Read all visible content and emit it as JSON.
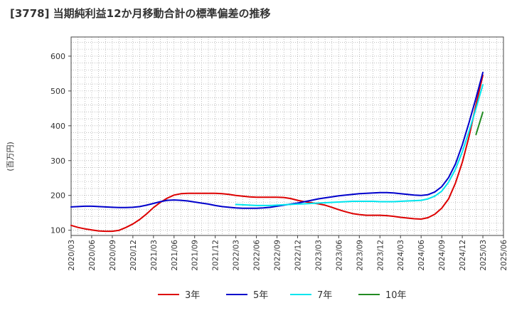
{
  "chart_data": {
    "type": "line",
    "title": "[3778]  当期純利益12か月移動合計の標準偏差の推移",
    "xlabel": "",
    "ylabel": "(百万円)",
    "ylim": [
      85,
      655
    ],
    "yticks": [
      "100",
      "200",
      "300",
      "400",
      "500",
      "600"
    ],
    "ytick_values": [
      100,
      200,
      300,
      400,
      500,
      600
    ],
    "x_range": [
      "2020/03",
      "2025/06"
    ],
    "xticks": [
      "2020/03",
      "2020/06",
      "2020/09",
      "2020/12",
      "2021/03",
      "2021/06",
      "2021/09",
      "2021/12",
      "2022/03",
      "2022/06",
      "2022/09",
      "2022/12",
      "2023/03",
      "2023/06",
      "2023/09",
      "2023/12",
      "2024/03",
      "2024/06",
      "2024/09",
      "2024/12",
      "2025/03",
      "2025/06"
    ],
    "grid": true,
    "legend_position": "bottom",
    "series": [
      {
        "name": "3年",
        "color": "#dd0000",
        "x": [
          "2020/03",
          "2020/04",
          "2020/05",
          "2020/06",
          "2020/07",
          "2020/08",
          "2020/09",
          "2020/10",
          "2020/11",
          "2020/12",
          "2021/01",
          "2021/02",
          "2021/03",
          "2021/04",
          "2021/05",
          "2021/06",
          "2021/07",
          "2021/08",
          "2021/09",
          "2021/10",
          "2021/11",
          "2021/12",
          "2022/01",
          "2022/02",
          "2022/03",
          "2022/04",
          "2022/05",
          "2022/06",
          "2022/07",
          "2022/08",
          "2022/09",
          "2022/10",
          "2022/11",
          "2022/12",
          "2023/01",
          "2023/02",
          "2023/03",
          "2023/04",
          "2023/05",
          "2023/06",
          "2023/07",
          "2023/08",
          "2023/09",
          "2023/10",
          "2023/11",
          "2023/12",
          "2024/01",
          "2024/02",
          "2024/03",
          "2024/04",
          "2024/05",
          "2024/06",
          "2024/07",
          "2024/08",
          "2024/09",
          "2024/10",
          "2024/11",
          "2024/12",
          "2025/01",
          "2025/02",
          "2025/03"
        ],
        "values": [
          114,
          108,
          104,
          101,
          98,
          97,
          97,
          100,
          108,
          118,
          131,
          147,
          165,
          180,
          192,
          201,
          205,
          206,
          206,
          206,
          206,
          206,
          205,
          203,
          200,
          198,
          196,
          195,
          195,
          195,
          195,
          194,
          191,
          186,
          182,
          179,
          176,
          172,
          166,
          159,
          153,
          148,
          145,
          143,
          143,
          143,
          142,
          140,
          137,
          135,
          133,
          132,
          136,
          146,
          163,
          190,
          235,
          295,
          370,
          460,
          545
        ]
      },
      {
        "name": "5年",
        "color": "#0000cc",
        "x": [
          "2020/03",
          "2020/04",
          "2020/05",
          "2020/06",
          "2020/07",
          "2020/08",
          "2020/09",
          "2020/10",
          "2020/11",
          "2020/12",
          "2021/01",
          "2021/02",
          "2021/03",
          "2021/04",
          "2021/05",
          "2021/06",
          "2021/07",
          "2021/08",
          "2021/09",
          "2021/10",
          "2021/11",
          "2021/12",
          "2022/01",
          "2022/02",
          "2022/03",
          "2022/04",
          "2022/05",
          "2022/06",
          "2022/07",
          "2022/08",
          "2022/09",
          "2022/10",
          "2022/11",
          "2022/12",
          "2023/01",
          "2023/02",
          "2023/03",
          "2023/04",
          "2023/05",
          "2023/06",
          "2023/07",
          "2023/08",
          "2023/09",
          "2023/10",
          "2023/11",
          "2023/12",
          "2024/01",
          "2024/02",
          "2024/03",
          "2024/04",
          "2024/05",
          "2024/06",
          "2024/07",
          "2024/08",
          "2024/09",
          "2024/10",
          "2024/11",
          "2024/12",
          "2025/01",
          "2025/02",
          "2025/03"
        ],
        "values": [
          167,
          168,
          169,
          169,
          168,
          167,
          166,
          165,
          165,
          166,
          168,
          172,
          177,
          182,
          186,
          187,
          186,
          184,
          181,
          178,
          175,
          171,
          168,
          166,
          164,
          163,
          163,
          163,
          164,
          166,
          169,
          172,
          175,
          178,
          182,
          186,
          190,
          193,
          196,
          199,
          201,
          203,
          205,
          206,
          207,
          208,
          208,
          207,
          205,
          203,
          201,
          200,
          202,
          210,
          225,
          251,
          290,
          345,
          410,
          480,
          553
        ]
      },
      {
        "name": "7年",
        "color": "#00e5ee",
        "x": [
          "2022/03",
          "2022/04",
          "2022/05",
          "2022/06",
          "2022/07",
          "2022/08",
          "2022/09",
          "2022/10",
          "2022/11",
          "2022/12",
          "2023/01",
          "2023/02",
          "2023/03",
          "2023/04",
          "2023/05",
          "2023/06",
          "2023/07",
          "2023/08",
          "2023/09",
          "2023/10",
          "2023/11",
          "2023/12",
          "2024/01",
          "2024/02",
          "2024/03",
          "2024/04",
          "2024/05",
          "2024/06",
          "2024/07",
          "2024/08",
          "2024/09",
          "2024/10",
          "2024/11",
          "2024/12",
          "2025/01",
          "2025/02",
          "2025/03"
        ],
        "values": [
          174,
          173,
          172,
          171,
          171,
          171,
          172,
          173,
          174,
          175,
          176,
          177,
          178,
          179,
          180,
          181,
          182,
          183,
          183,
          183,
          183,
          182,
          182,
          182,
          183,
          184,
          185,
          186,
          190,
          198,
          212,
          238,
          275,
          325,
          385,
          450,
          518
        ]
      },
      {
        "name": "10年",
        "color": "#228b22",
        "x": [
          "2025/02",
          "2025/03"
        ],
        "values": [
          375,
          439
        ]
      }
    ]
  }
}
